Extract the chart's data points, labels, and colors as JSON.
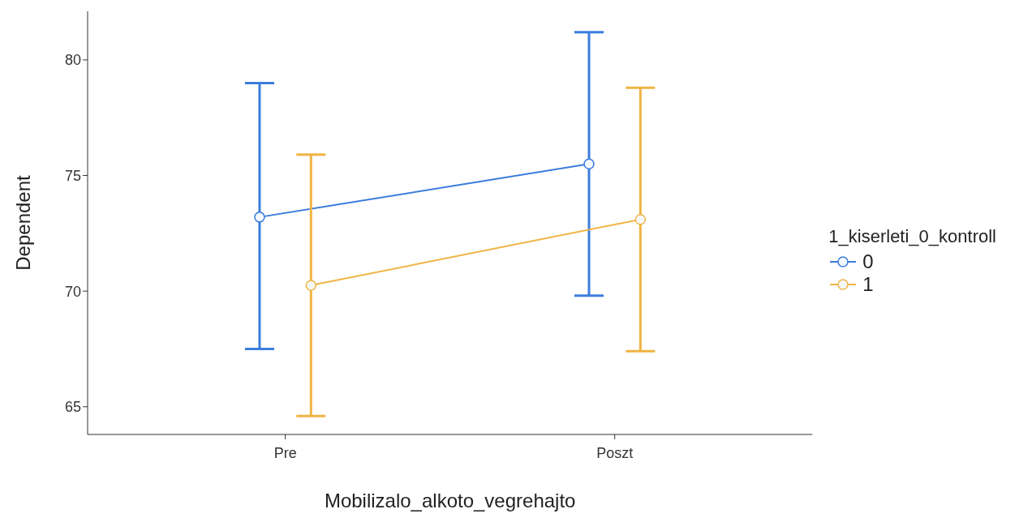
{
  "chart_data": {
    "type": "line",
    "xlabel": "Mobilizalo_alkoto_vegrehajto",
    "ylabel": "Dependent",
    "legend_title": "1_kiserleti_0_kontroll",
    "categories": [
      "Pre",
      "Poszt"
    ],
    "series": [
      {
        "name": "0",
        "color": "#3b7ddd",
        "values": [
          73.2,
          75.5
        ],
        "errors": [
          [
            67.5,
            79.0
          ],
          [
            69.8,
            81.2
          ]
        ]
      },
      {
        "name": "1",
        "color": "#f0b445",
        "values": [
          70.25,
          73.1
        ],
        "errors": [
          [
            64.6,
            75.9
          ],
          [
            67.4,
            78.8
          ]
        ]
      }
    ],
    "ylim": [
      63.8,
      82.1
    ],
    "yticks": [
      65,
      70,
      75,
      80
    ],
    "grid": false,
    "legend": "right",
    "marker": "circle",
    "line_style": "solid"
  }
}
